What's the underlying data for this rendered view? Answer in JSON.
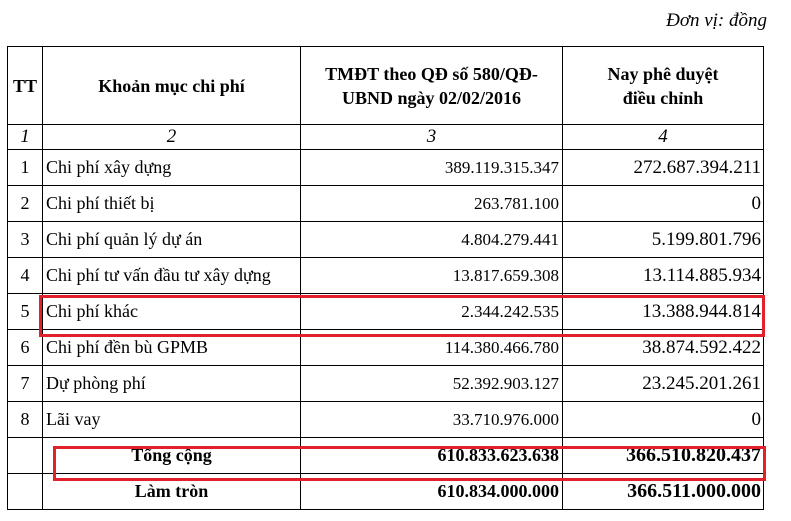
{
  "unit_label": "Đơn vị: đồng",
  "table": {
    "headers": {
      "tt": "TT",
      "item": "Khoản mục chi phí",
      "approved": "TMĐT theo QĐ số 580/QĐ-UBND ngày 02/02/2016",
      "adjusted": "Nay phê duyệt điều chỉnh"
    },
    "column_numbers": [
      "1",
      "2",
      "3",
      "4"
    ],
    "rows": [
      {
        "tt": "1",
        "item": "Chi phí xây dựng",
        "approved": "389.119.315.347",
        "adjusted": "272.687.394.211"
      },
      {
        "tt": "2",
        "item": "Chi phí thiết bị",
        "approved": "263.781.100",
        "adjusted": "0"
      },
      {
        "tt": "3",
        "item": "Chi phí quản lý dự án",
        "approved": "4.804.279.441",
        "adjusted": "5.199.801.796"
      },
      {
        "tt": "4",
        "item": "Chi phí tư vấn đầu tư xây dựng",
        "approved": "13.817.659.308",
        "adjusted": "13.114.885.934"
      },
      {
        "tt": "5",
        "item": "Chi phí khác",
        "approved": "2.344.242.535",
        "adjusted": "13.388.944.814"
      },
      {
        "tt": "6",
        "item": "Chi phí đền bù GPMB",
        "approved": "114.380.466.780",
        "adjusted": "38.874.592.422"
      },
      {
        "tt": "7",
        "item": "Dự phòng phí",
        "approved": "52.392.903.127",
        "adjusted": "23.245.201.261"
      },
      {
        "tt": "8",
        "item": "Lãi vay",
        "approved": "33.710.976.000",
        "adjusted": "0"
      }
    ],
    "total": {
      "item": "Tổng cộng",
      "approved": "610.833.623.638",
      "adjusted": "366.510.820.437"
    },
    "rounded": {
      "item": "Làm tròn",
      "approved": "610.834.000.000",
      "adjusted": "366.511.000.000"
    }
  },
  "highlight_color": "#e3212c"
}
